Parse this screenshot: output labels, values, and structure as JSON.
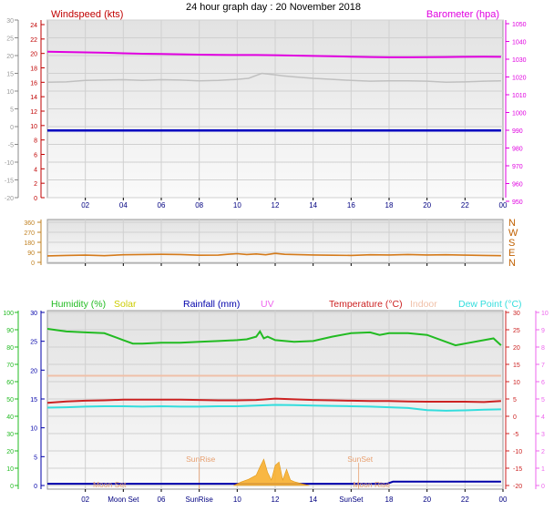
{
  "title": "24 hour graph day : 20 November 2018",
  "colors": {
    "wind": "#c00000",
    "gust": "#c0c0c0",
    "baro": "#e000e0",
    "windbar": "#0000c0",
    "dir": "#d47a1a",
    "dirAxis": "#c08020",
    "humidity": "#22bb22",
    "solar": "#cccc00",
    "rain": "#0000aa",
    "uv": "#ee66ee",
    "temp": "#cc2222",
    "indoor": "#f0c0a8",
    "dew": "#33dddd",
    "solarFill": "#f8b030",
    "sunMoon": "#e8a070"
  },
  "chart_data": [
    {
      "type": "line",
      "id": "wind",
      "x_ticks": [
        "02",
        "04",
        "06",
        "08",
        "10",
        "12",
        "14",
        "16",
        "18",
        "20",
        "22",
        "00"
      ],
      "left_label": "Windspeed (kts)",
      "right_label": "Barometer (hpa)",
      "left_ticks_grey": [
        30,
        25,
        20,
        15,
        10,
        5,
        0,
        -5,
        -10,
        -15,
        -20
      ],
      "left_ticks_red": [
        24,
        22,
        20,
        18,
        16,
        14,
        12,
        10,
        8,
        6,
        4,
        2,
        0
      ],
      "right_ticks": [
        1050,
        1040,
        1030,
        1020,
        1010,
        1000,
        990,
        980,
        970,
        960,
        950
      ],
      "ylim_grey": [
        -20,
        30
      ],
      "ylim_baro": [
        950,
        1050
      ],
      "series": [
        {
          "key": "baro",
          "x": [
            0,
            1,
            2,
            3,
            4,
            5,
            6,
            7,
            8,
            9,
            10,
            11,
            12,
            13,
            14,
            15,
            16,
            17,
            18,
            19,
            20,
            21,
            22,
            23,
            23.9
          ],
          "y": [
            1032.2,
            1032,
            1031.8,
            1031.6,
            1031.3,
            1031,
            1030.9,
            1030.7,
            1030.5,
            1030.4,
            1030.3,
            1030.3,
            1030.2,
            1030,
            1029.8,
            1029.6,
            1029.4,
            1029.2,
            1029,
            1029,
            1029.1,
            1029.2,
            1029.3,
            1029.4,
            1029.3
          ]
        },
        {
          "key": "gust",
          "x": [
            0,
            1,
            2,
            3,
            4,
            5,
            6,
            7,
            8,
            9,
            10,
            10.6,
            11,
            11.3,
            11.6,
            12,
            12.4,
            13,
            14,
            15,
            16,
            17,
            18,
            19,
            20,
            21,
            22,
            23,
            23.9
          ],
          "y": [
            12.5,
            12.6,
            13,
            13.1,
            13.2,
            13,
            13.2,
            13.1,
            12.9,
            13,
            13.3,
            13.6,
            14.4,
            15,
            14.8,
            14.6,
            14.3,
            14,
            13.6,
            13.3,
            13,
            12.8,
            12.9,
            12.9,
            12.8,
            12.5,
            12.6,
            12.8,
            12.9
          ]
        },
        {
          "key": "windbar",
          "x": [
            0,
            23.9
          ],
          "y": [
            -1.1,
            -1.1
          ]
        }
      ]
    },
    {
      "type": "line",
      "id": "direction",
      "right_labels": [
        "N",
        "W",
        "S",
        "E",
        "N"
      ],
      "left_ticks": [
        360,
        270,
        180,
        90,
        0
      ],
      "ylim": [
        0,
        360
      ],
      "series": [
        {
          "key": "dir",
          "x": [
            0,
            1,
            2,
            3,
            4,
            5,
            6,
            7,
            8,
            9,
            9.5,
            10,
            10.5,
            11,
            11.5,
            12,
            12.5,
            13,
            14,
            15,
            16,
            17,
            18,
            19,
            20,
            21,
            22,
            23,
            23.9
          ],
          "y": [
            58,
            62,
            65,
            60,
            68,
            70,
            72,
            70,
            64,
            65,
            72,
            78,
            70,
            75,
            68,
            80,
            72,
            70,
            66,
            64,
            62,
            68,
            66,
            70,
            66,
            68,
            65,
            62,
            60
          ]
        }
      ]
    },
    {
      "type": "line",
      "id": "temperature",
      "legend": [
        "Humidity (%)",
        "Solar",
        "Rainfall (mm)",
        "UV",
        "Temperature (°C)",
        "Indoor",
        "Dew Point (°C)"
      ],
      "left_ticks_green": [
        100,
        90,
        80,
        70,
        60,
        50,
        40,
        30,
        20,
        10,
        0
      ],
      "left_ticks_blue": [
        30,
        25,
        20,
        15,
        10,
        5,
        0
      ],
      "right_ticks_red": [
        30,
        25,
        20,
        15,
        10,
        5,
        0,
        -5,
        -10,
        -15,
        -20
      ],
      "right_ticks_pink": [
        10,
        9,
        8,
        7,
        6,
        5,
        4,
        3,
        2,
        1,
        0
      ],
      "annotations": [
        {
          "text": "SunRise",
          "x": 7.4,
          "y": -12.4
        },
        {
          "text": "SunSet",
          "x": 15.8,
          "y": -12.4
        },
        {
          "text": "Moon Set",
          "x": 2.6,
          "y": -19.8
        },
        {
          "text": "Moon Rise",
          "x": 16.4,
          "y": -19.8
        }
      ],
      "bottom_ticks": [
        "02",
        "Moon Set",
        "06",
        "SunRise",
        "10",
        "12",
        "14",
        "SunSet",
        "18",
        "20",
        "22",
        "00"
      ],
      "ylim_temp": [
        -20,
        30
      ],
      "ylim_hum": [
        0,
        100
      ],
      "series": [
        {
          "key": "humidity",
          "x": [
            0,
            1,
            2,
            3,
            4,
            4.5,
            5,
            6,
            7,
            8,
            9,
            10,
            10.5,
            11,
            11.2,
            11.4,
            11.6,
            12,
            13,
            14,
            15,
            16,
            17,
            17.5,
            18,
            19,
            20,
            21,
            21.5,
            22,
            23,
            23.5,
            23.9
          ],
          "y": [
            90.5,
            89,
            88.5,
            88,
            84,
            82,
            82,
            82.5,
            82.5,
            83,
            83.5,
            84,
            84.5,
            86,
            89,
            85,
            86,
            84,
            83,
            83.5,
            86,
            88,
            88.5,
            87,
            88,
            88,
            87,
            83,
            81,
            82,
            84,
            85,
            81
          ]
        },
        {
          "key": "temp",
          "x": [
            0,
            1,
            2,
            3,
            4,
            5,
            6,
            7,
            8,
            9,
            10,
            11,
            12,
            13,
            14,
            15,
            16,
            17,
            18,
            19,
            20,
            21,
            22,
            23,
            23.9
          ],
          "y": [
            3.9,
            4.3,
            4.5,
            4.6,
            4.8,
            4.8,
            4.8,
            4.8,
            4.7,
            4.6,
            4.6,
            4.7,
            5.1,
            4.9,
            4.7,
            4.6,
            4.5,
            4.4,
            4.4,
            4.3,
            4.2,
            4.2,
            4.2,
            4.1,
            4.4
          ]
        },
        {
          "key": "dew",
          "x": [
            0,
            1,
            2,
            3,
            4,
            5,
            6,
            7,
            8,
            9,
            10,
            11,
            12,
            13,
            14,
            15,
            16,
            17,
            18,
            19,
            20,
            21,
            22,
            23,
            23.9
          ],
          "y": [
            2.5,
            2.6,
            2.8,
            2.9,
            2.9,
            2.8,
            2.9,
            2.8,
            2.8,
            2.9,
            2.9,
            3.1,
            3.3,
            3.2,
            3.1,
            3.0,
            2.9,
            2.8,
            2.6,
            2.4,
            1.8,
            1.6,
            1.7,
            1.9,
            2.0
          ]
        },
        {
          "key": "indoor",
          "x": [
            0,
            23.9
          ],
          "y": [
            11.7,
            11.7
          ]
        },
        {
          "key": "rain",
          "x": [
            0,
            17.9,
            18.2,
            23.9
          ],
          "y": [
            -19.5,
            -19.5,
            -18.9,
            -18.9
          ]
        },
        {
          "key": "solar",
          "x": [
            9.8,
            10.2,
            10.6,
            11,
            11.2,
            11.4,
            11.6,
            11.8,
            12,
            12.2,
            12.4,
            12.6,
            12.8,
            13,
            13.4,
            13.8
          ],
          "y": [
            -20,
            -19,
            -18.2,
            -17,
            -14.6,
            -12.4,
            -16.2,
            -18.4,
            -14.2,
            -13.2,
            -18.4,
            -15.3,
            -18.4,
            -18.9,
            -19.5,
            -20
          ]
        }
      ]
    }
  ]
}
